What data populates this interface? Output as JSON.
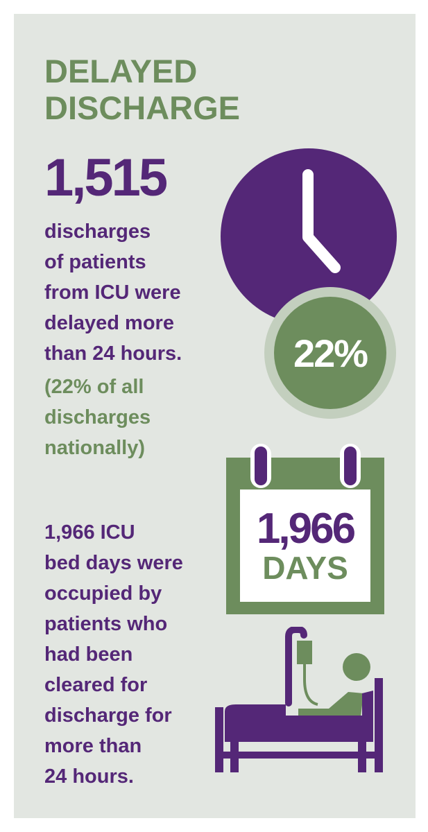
{
  "title": {
    "line1": "DELAYED",
    "line2": "DISCHARGE"
  },
  "stat1": {
    "number": "1,515",
    "lines": [
      "discharges",
      "of patients",
      "from ICU were",
      "delayed more",
      "than 24 hours."
    ],
    "sub_lines": [
      "(22% of all",
      "discharges",
      "nationally)"
    ]
  },
  "clock": {
    "icon": "clock-icon",
    "percent": "22%"
  },
  "calendar": {
    "icon": "calendar-icon",
    "number": "1,966",
    "unit": "DAYS"
  },
  "stat2": {
    "lines": [
      "1,966 ICU",
      "bed days were",
      "occupied by",
      "patients who",
      "had been",
      "cleared for",
      "discharge for",
      "more than",
      "24 hours."
    ]
  },
  "bed_icon": "hospital-bed-patient-icon",
  "colors": {
    "purple": "#542777",
    "green": "#6d8d5d",
    "light_green": "#c3cfbe",
    "panel": "#e2e6e1"
  }
}
